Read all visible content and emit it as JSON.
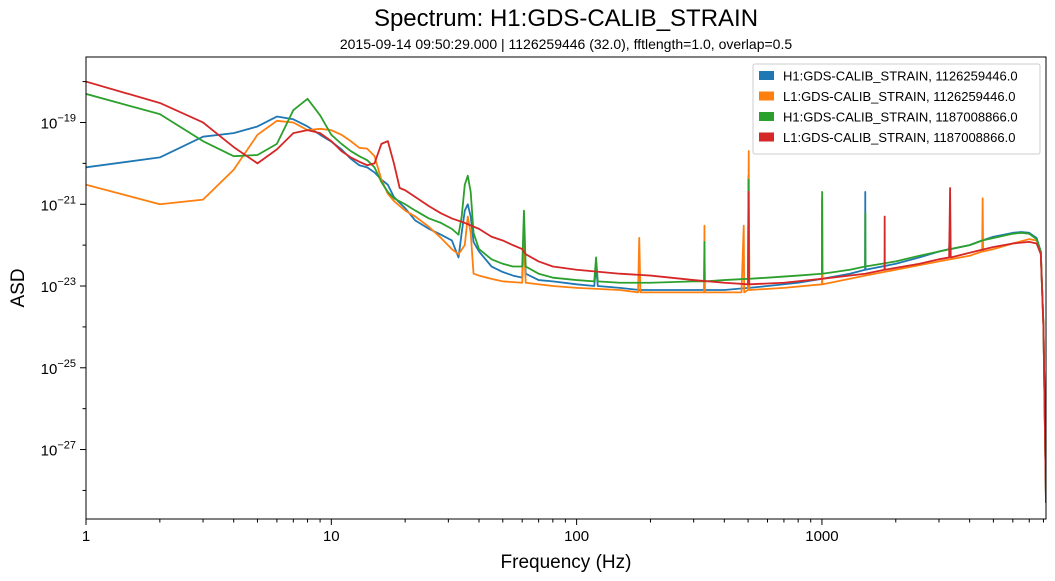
{
  "chart_data": {
    "type": "line",
    "title": "Spectrum: H1:GDS-CALIB_STRAIN",
    "subtitle": "2015-09-14 09:50:29.000 | 1126259446 (32.0), fftlength=1.0, overlap=0.5",
    "xlabel": "Frequency (Hz)",
    "ylabel": "ASD",
    "xscale": "log",
    "yscale": "log",
    "xlim": [
      1,
      8192
    ],
    "ylim": [
      2e-29,
      4e-18
    ],
    "xticks": [
      {
        "value": 1,
        "label": "1"
      },
      {
        "value": 10,
        "label": "10"
      },
      {
        "value": 100,
        "label": "100"
      },
      {
        "value": 1000,
        "label": "1000"
      }
    ],
    "yticks": [
      {
        "value": 1e-19,
        "base": "10",
        "exp": "−19"
      },
      {
        "value": 1e-21,
        "base": "10",
        "exp": "−21"
      },
      {
        "value": 1e-23,
        "base": "10",
        "exp": "−23"
      },
      {
        "value": 1e-25,
        "base": "10",
        "exp": "−25"
      },
      {
        "value": 1e-27,
        "base": "10",
        "exp": "−27"
      }
    ],
    "grid": false,
    "legend_position": "top-right",
    "series": [
      {
        "name": "H1:GDS-CALIB_STRAIN, 1126259446.0",
        "color": "#1f77b4",
        "points": [
          [
            1,
            8e-21
          ],
          [
            2,
            1.4e-20
          ],
          [
            3,
            4.5e-20
          ],
          [
            4,
            5.5e-20
          ],
          [
            5,
            8e-20
          ],
          [
            6,
            1.4e-19
          ],
          [
            7,
            1.2e-19
          ],
          [
            8,
            8e-20
          ],
          [
            9,
            5e-20
          ],
          [
            10,
            3.4e-20
          ],
          [
            11,
            2.2e-20
          ],
          [
            12,
            1.3e-20
          ],
          [
            13,
            9e-21
          ],
          [
            14,
            8e-21
          ],
          [
            15,
            6e-21
          ],
          [
            16,
            4e-21
          ],
          [
            17,
            3e-21
          ],
          [
            18,
            1.5e-21
          ],
          [
            20,
            8e-22
          ],
          [
            22,
            4e-22
          ],
          [
            25,
            2.5e-22
          ],
          [
            28,
            1.8e-22
          ],
          [
            31,
            1.3e-22
          ],
          [
            33,
            5e-23
          ],
          [
            34,
            2e-22
          ],
          [
            35,
            7e-22
          ],
          [
            36,
            1e-21
          ],
          [
            37,
            5e-22
          ],
          [
            38,
            1.2e-22
          ],
          [
            40,
            7e-23
          ],
          [
            45,
            3e-23
          ],
          [
            50,
            2.2e-23
          ],
          [
            55,
            1.8e-23
          ],
          [
            60,
            1.6e-23
          ],
          [
            61,
            2.5e-22
          ],
          [
            62,
            2e-23
          ],
          [
            70,
            1.4e-23
          ],
          [
            80,
            1.3e-23
          ],
          [
            100,
            1.1e-23
          ],
          [
            118,
            1e-23
          ],
          [
            120,
            3e-23
          ],
          [
            122,
            1e-23
          ],
          [
            150,
            9e-24
          ],
          [
            180,
            8e-24
          ],
          [
            250,
            8e-24
          ],
          [
            300,
            8e-24
          ],
          [
            331,
            8e-24
          ],
          [
            332,
            8e-23
          ],
          [
            333,
            8e-24
          ],
          [
            400,
            8e-24
          ],
          [
            500,
            9e-24
          ],
          [
            502,
            5e-21
          ],
          [
            504,
            9e-24
          ],
          [
            600,
            1e-23
          ],
          [
            800,
            1.2e-23
          ],
          [
            1000,
            1.5e-23
          ],
          [
            1002,
            1.2e-21
          ],
          [
            1004,
            1.5e-23
          ],
          [
            1300,
            2e-23
          ],
          [
            1500,
            2.5e-23
          ],
          [
            1502,
            2e-21
          ],
          [
            1504,
            2.5e-23
          ],
          [
            2000,
            3.5e-23
          ],
          [
            2500,
            5e-23
          ],
          [
            3000,
            7e-23
          ],
          [
            3300,
            8e-23
          ],
          [
            3330,
            3e-22
          ],
          [
            3350,
            8e-23
          ],
          [
            4000,
            1e-22
          ],
          [
            4500,
            1.3e-22
          ],
          [
            5000,
            1.6e-22
          ],
          [
            5500,
            1.8e-22
          ],
          [
            6000,
            2e-22
          ],
          [
            6500,
            2.1e-22
          ],
          [
            7000,
            2e-22
          ],
          [
            7500,
            1.5e-22
          ],
          [
            7800,
            7e-23
          ],
          [
            8000,
            1e-24
          ],
          [
            8192,
            5e-29
          ]
        ]
      },
      {
        "name": "L1:GDS-CALIB_STRAIN, 1126259446.0",
        "color": "#ff7f0e",
        "points": [
          [
            1,
            3e-21
          ],
          [
            2,
            1e-21
          ],
          [
            3,
            1.3e-21
          ],
          [
            4,
            7e-21
          ],
          [
            5,
            5e-20
          ],
          [
            6,
            1.1e-19
          ],
          [
            7,
            1e-19
          ],
          [
            8,
            6.5e-20
          ],
          [
            9,
            7e-20
          ],
          [
            10,
            6.5e-20
          ],
          [
            11,
            5e-20
          ],
          [
            12,
            3.5e-20
          ],
          [
            13,
            2.4e-20
          ],
          [
            14,
            2.3e-20
          ],
          [
            15,
            1.5e-20
          ],
          [
            16,
            4e-21
          ],
          [
            17,
            1.8e-21
          ],
          [
            18,
            1.2e-21
          ],
          [
            20,
            7e-22
          ],
          [
            22,
            5e-22
          ],
          [
            25,
            2.8e-22
          ],
          [
            28,
            1.5e-22
          ],
          [
            31,
            8e-23
          ],
          [
            33,
            6e-23
          ],
          [
            35,
            1e-22
          ],
          [
            36,
            5e-22
          ],
          [
            37,
            2e-22
          ],
          [
            38,
            2e-23
          ],
          [
            40,
            1.8e-23
          ],
          [
            45,
            1.5e-23
          ],
          [
            50,
            1.3e-23
          ],
          [
            60,
            1.2e-23
          ],
          [
            61,
            1.3e-22
          ],
          [
            62,
            1.2e-23
          ],
          [
            80,
            1e-23
          ],
          [
            100,
            9e-24
          ],
          [
            150,
            8e-24
          ],
          [
            178,
            7e-24
          ],
          [
            180,
            1.5e-22
          ],
          [
            182,
            7e-24
          ],
          [
            250,
            7e-24
          ],
          [
            300,
            7e-24
          ],
          [
            331,
            7e-24
          ],
          [
            332,
            3e-22
          ],
          [
            333,
            7e-24
          ],
          [
            400,
            7e-24
          ],
          [
            470,
            7e-24
          ],
          [
            480,
            3e-22
          ],
          [
            482,
            7e-24
          ],
          [
            500,
            8e-24
          ],
          [
            503,
            2e-20
          ],
          [
            506,
            8e-24
          ],
          [
            700,
            9e-24
          ],
          [
            1000,
            1.1e-23
          ],
          [
            1002,
            1.4e-21
          ],
          [
            1004,
            1.1e-23
          ],
          [
            1500,
            1.8e-23
          ],
          [
            2000,
            2.5e-23
          ],
          [
            3000,
            4e-23
          ],
          [
            4000,
            5.5e-23
          ],
          [
            4500,
            7e-23
          ],
          [
            4520,
            1.4e-21
          ],
          [
            4540,
            7e-23
          ],
          [
            5000,
            8e-23
          ],
          [
            6000,
            1.1e-22
          ],
          [
            7000,
            1.4e-22
          ],
          [
            7500,
            1.3e-22
          ],
          [
            7800,
            7e-23
          ],
          [
            8000,
            1e-24
          ],
          [
            8192,
            5e-29
          ]
        ]
      },
      {
        "name": "H1:GDS-CALIB_STRAIN, 1187008866.0",
        "color": "#2ca02c",
        "points": [
          [
            1,
            5e-19
          ],
          [
            2,
            1.6e-19
          ],
          [
            3,
            3.5e-20
          ],
          [
            4,
            1.5e-20
          ],
          [
            5,
            1.6e-20
          ],
          [
            6,
            3e-20
          ],
          [
            7,
            2e-19
          ],
          [
            8,
            3.8e-19
          ],
          [
            9,
            1.5e-19
          ],
          [
            10,
            5e-20
          ],
          [
            11,
            3e-20
          ],
          [
            12,
            2e-20
          ],
          [
            13,
            1.5e-20
          ],
          [
            14,
            1.2e-20
          ],
          [
            15,
            8e-21
          ],
          [
            16,
            3.5e-21
          ],
          [
            17,
            2e-21
          ],
          [
            18,
            1.4e-21
          ],
          [
            20,
            1e-21
          ],
          [
            22,
            7e-22
          ],
          [
            25,
            4.5e-22
          ],
          [
            28,
            3.5e-22
          ],
          [
            31,
            2.5e-22
          ],
          [
            33,
            1.8e-22
          ],
          [
            34,
            5e-22
          ],
          [
            35,
            3e-21
          ],
          [
            36,
            5e-21
          ],
          [
            37,
            2e-21
          ],
          [
            38,
            2e-22
          ],
          [
            40,
            8e-23
          ],
          [
            45,
            4.5e-23
          ],
          [
            50,
            3.5e-23
          ],
          [
            55,
            3e-23
          ],
          [
            60,
            3e-23
          ],
          [
            61,
            7e-22
          ],
          [
            62,
            3e-23
          ],
          [
            70,
            2e-23
          ],
          [
            80,
            1.6e-23
          ],
          [
            100,
            1.4e-23
          ],
          [
            118,
            1.3e-23
          ],
          [
            120,
            5e-23
          ],
          [
            122,
            1.3e-23
          ],
          [
            150,
            1.2e-23
          ],
          [
            200,
            1.2e-23
          ],
          [
            300,
            1.3e-23
          ],
          [
            331,
            1.3e-23
          ],
          [
            332,
            1.2e-22
          ],
          [
            333,
            1.3e-23
          ],
          [
            400,
            1.4e-23
          ],
          [
            500,
            1.5e-23
          ],
          [
            502,
            4e-21
          ],
          [
            504,
            1.5e-23
          ],
          [
            600,
            1.6e-23
          ],
          [
            800,
            1.8e-23
          ],
          [
            1000,
            2e-23
          ],
          [
            1002,
            2e-21
          ],
          [
            1004,
            2e-23
          ],
          [
            1300,
            2.5e-23
          ],
          [
            1500,
            3e-23
          ],
          [
            1502,
            6e-22
          ],
          [
            1504,
            3e-23
          ],
          [
            2000,
            4e-23
          ],
          [
            2500,
            5.5e-23
          ],
          [
            3000,
            7e-23
          ],
          [
            3500,
            8.5e-23
          ],
          [
            4000,
            1e-22
          ],
          [
            4500,
            1.3e-22
          ],
          [
            5000,
            1.5e-22
          ],
          [
            5500,
            1.7e-22
          ],
          [
            6000,
            1.9e-22
          ],
          [
            6500,
            2e-22
          ],
          [
            7000,
            1.9e-22
          ],
          [
            7500,
            1.4e-22
          ],
          [
            7800,
            7e-23
          ],
          [
            8000,
            1e-24
          ],
          [
            8192,
            5e-29
          ]
        ]
      },
      {
        "name": "L1:GDS-CALIB_STRAIN, 1187008866.0",
        "color": "#d62728",
        "points": [
          [
            1,
            1e-18
          ],
          [
            2,
            3e-19
          ],
          [
            3,
            1e-19
          ],
          [
            4,
            2.5e-20
          ],
          [
            5,
            1e-20
          ],
          [
            6,
            2.2e-20
          ],
          [
            7,
            5.5e-20
          ],
          [
            8,
            6.5e-20
          ],
          [
            9,
            5.5e-20
          ],
          [
            10,
            3.5e-20
          ],
          [
            11,
            2e-20
          ],
          [
            12,
            1.4e-20
          ],
          [
            13,
            1.1e-20
          ],
          [
            14,
            9e-21
          ],
          [
            15,
            1e-20
          ],
          [
            16,
            3e-20
          ],
          [
            17,
            3.5e-20
          ],
          [
            18,
            1e-20
          ],
          [
            19,
            2.5e-21
          ],
          [
            20,
            2.2e-21
          ],
          [
            22,
            1.5e-21
          ],
          [
            25,
            9e-22
          ],
          [
            28,
            6e-22
          ],
          [
            31,
            4.5e-22
          ],
          [
            35,
            3.5e-22
          ],
          [
            40,
            2.5e-22
          ],
          [
            45,
            1.6e-22
          ],
          [
            50,
            1.3e-22
          ],
          [
            55,
            1e-22
          ],
          [
            60,
            8e-23
          ],
          [
            62,
            6e-23
          ],
          [
            70,
            4e-23
          ],
          [
            80,
            3e-23
          ],
          [
            100,
            2.5e-23
          ],
          [
            150,
            2e-23
          ],
          [
            200,
            1.8e-23
          ],
          [
            300,
            1.4e-23
          ],
          [
            400,
            1.2e-23
          ],
          [
            500,
            1.1e-23
          ],
          [
            502,
            2e-21
          ],
          [
            504,
            1.1e-23
          ],
          [
            700,
            1.2e-23
          ],
          [
            1000,
            1.5e-23
          ],
          [
            1500,
            2e-23
          ],
          [
            1800,
            2.5e-23
          ],
          [
            1802,
            5e-22
          ],
          [
            1804,
            2.5e-23
          ],
          [
            2500,
            3.5e-23
          ],
          [
            3000,
            4.5e-23
          ],
          [
            3300,
            5e-23
          ],
          [
            3330,
            2.5e-21
          ],
          [
            3350,
            5e-23
          ],
          [
            4000,
            6.5e-23
          ],
          [
            5000,
            9e-23
          ],
          [
            6000,
            1.1e-22
          ],
          [
            7000,
            1.2e-22
          ],
          [
            7500,
            1.1e-22
          ],
          [
            7800,
            6e-23
          ],
          [
            8000,
            1e-24
          ],
          [
            8192,
            5e-29
          ]
        ]
      }
    ]
  }
}
